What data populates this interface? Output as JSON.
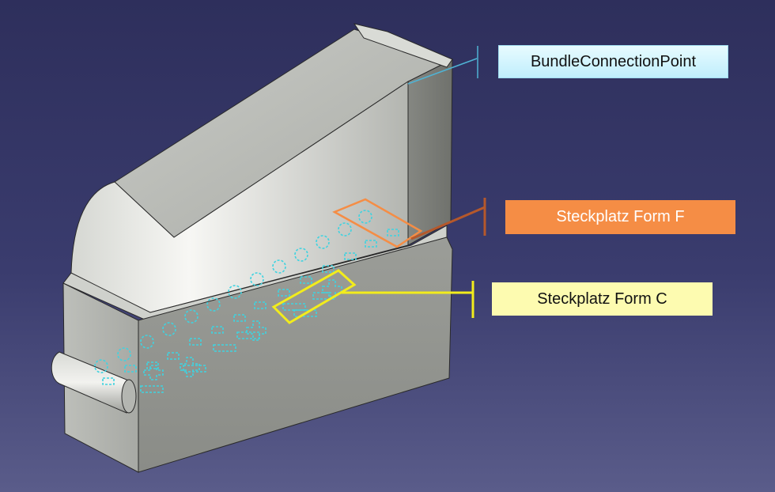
{
  "diagram": {
    "labels": {
      "bundle_connection_point": "BundleConnectionPoint",
      "steckplatz_form_f": "Steckplatz Form F",
      "steckplatz_form_c": "Steckplatz Form C"
    },
    "colors": {
      "background_top": "#2e2f5c",
      "background_bottom": "#5a5c8a",
      "slot_outline": "#3fd3e0",
      "form_f_accent": "#f58d45",
      "form_c_accent": "#f2ec1c",
      "bundle_leader": "#4fb3d4"
    }
  }
}
